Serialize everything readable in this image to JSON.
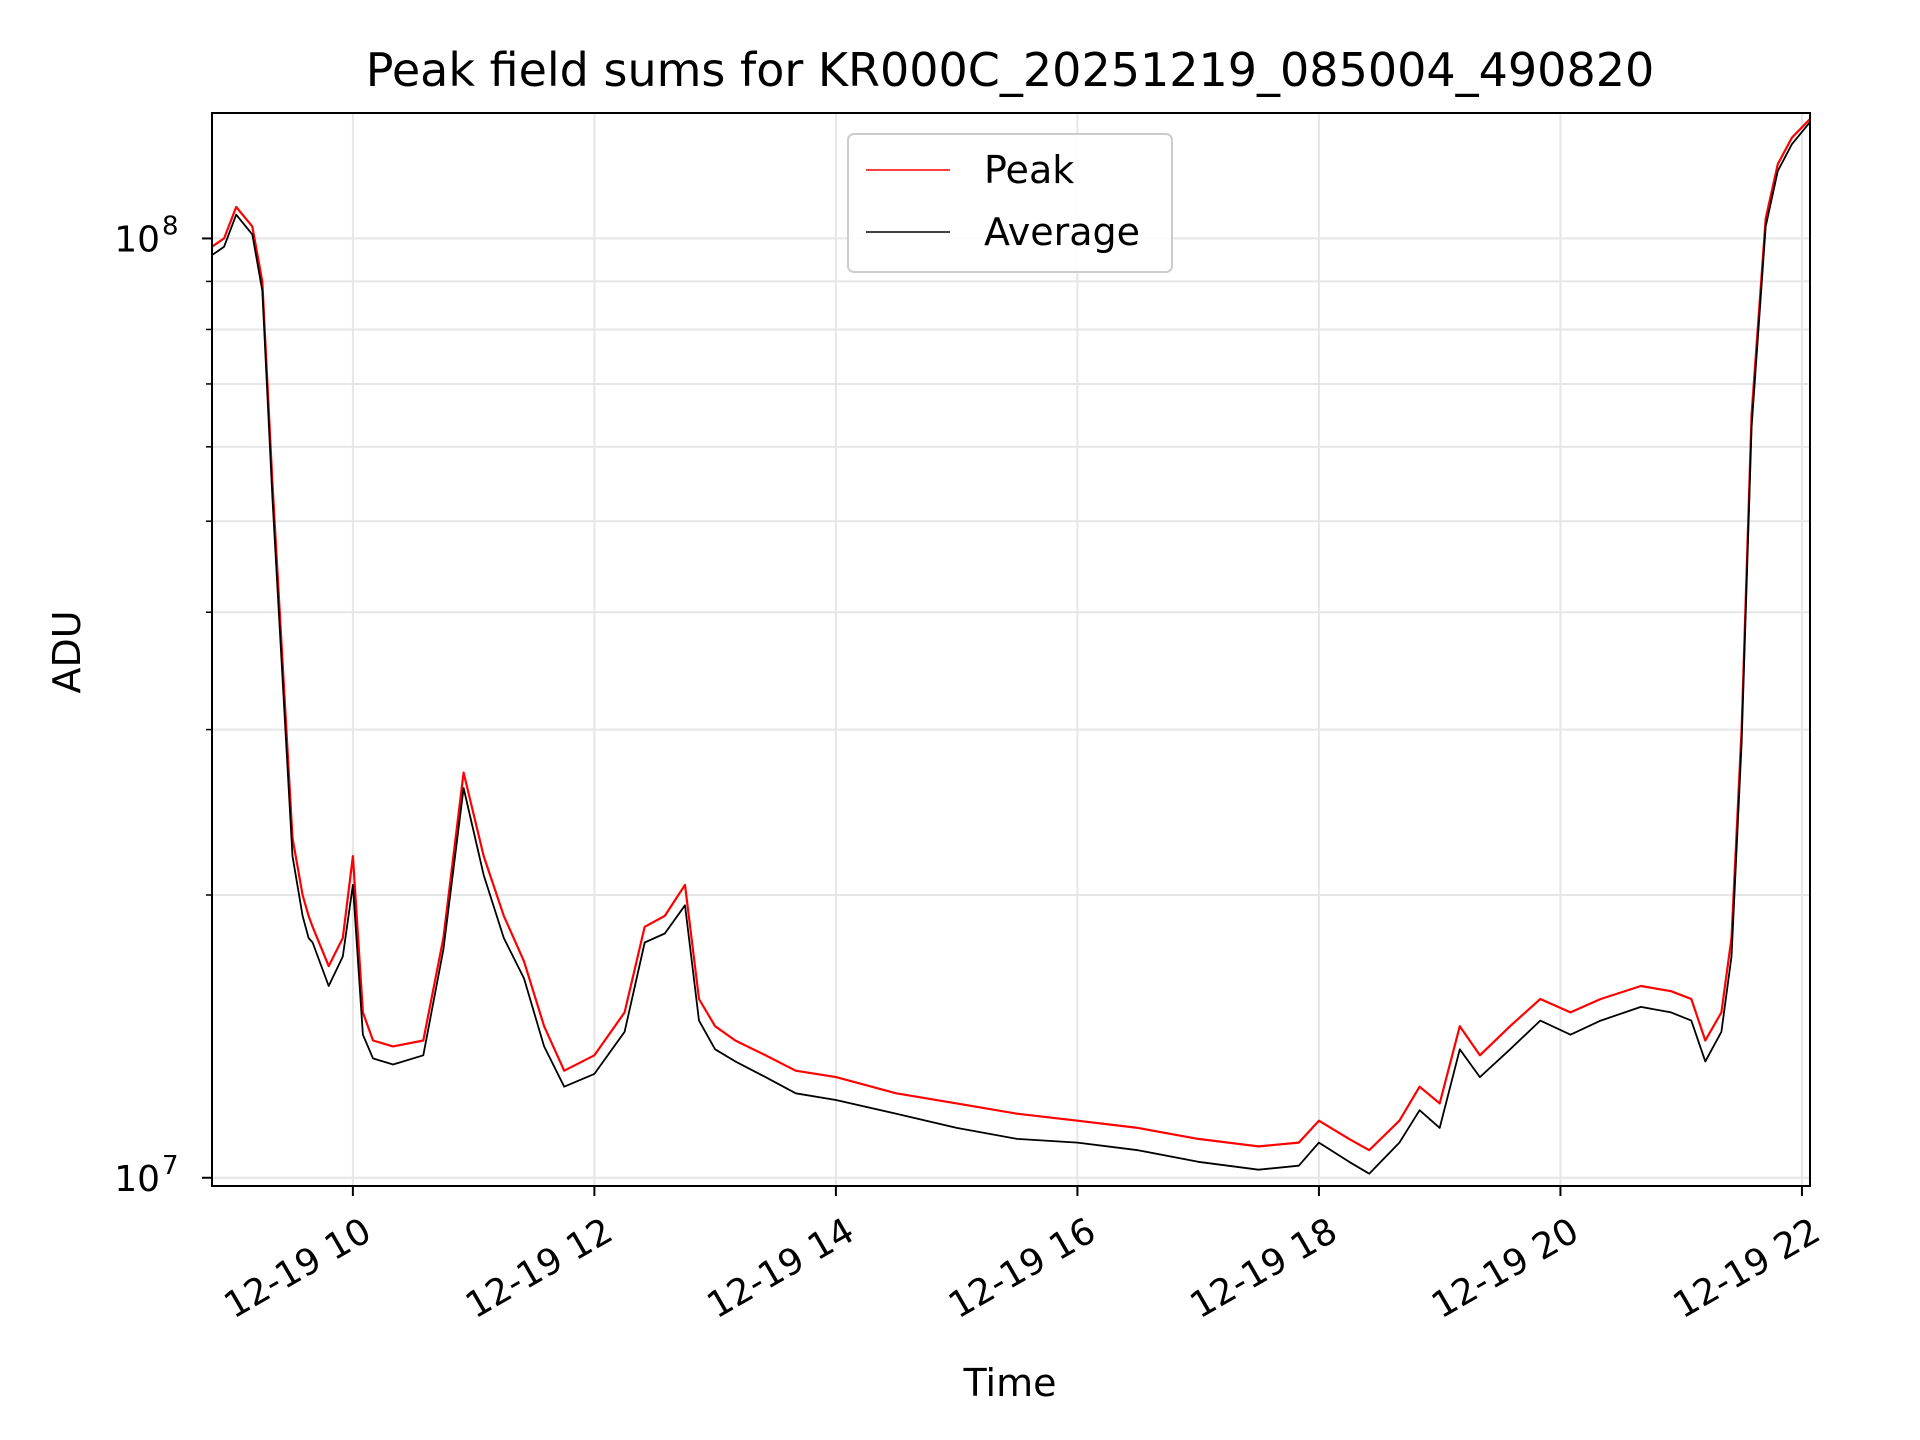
{
  "chart_data": {
    "type": "line",
    "title": "Peak field sums for KR000C_20251219_085004_490820",
    "xlabel": "Time",
    "ylabel": "ADU",
    "y_scale": "log",
    "ylim": [
      9800000,
      136000000
    ],
    "xlim": [
      "2025-12-19 08:50",
      "2025-12-19 22:04"
    ],
    "x_ticks": [
      {
        "label": "12-19 10",
        "time": "2025-12-19 10:00"
      },
      {
        "label": "12-19 12",
        "time": "2025-12-19 12:00"
      },
      {
        "label": "12-19 14",
        "time": "2025-12-19 14:00"
      },
      {
        "label": "12-19 16",
        "time": "2025-12-19 16:00"
      },
      {
        "label": "12-19 18",
        "time": "2025-12-19 18:00"
      },
      {
        "label": "12-19 20",
        "time": "2025-12-19 20:00"
      },
      {
        "label": "12-19 22",
        "time": "2025-12-19 22:00"
      }
    ],
    "y_ticks": [
      {
        "label": "10",
        "exp": "7",
        "value": 10000000
      },
      {
        "label": "10",
        "exp": "8",
        "value": 100000000
      }
    ],
    "grid": true,
    "legend_position": "top-center",
    "series": [
      {
        "name": "Peak",
        "color": "#ff0000",
        "x": [
          "2025-12-19 08:50",
          "2025-12-19 08:56",
          "2025-12-19 09:02",
          "2025-12-19 09:10",
          "2025-12-19 09:15",
          "2025-12-19 09:20",
          "2025-12-19 09:30",
          "2025-12-19 09:35",
          "2025-12-19 09:38",
          "2025-12-19 09:40",
          "2025-12-19 09:48",
          "2025-12-19 09:55",
          "2025-12-19 10:00",
          "2025-12-19 10:05",
          "2025-12-19 10:10",
          "2025-12-19 10:20",
          "2025-12-19 10:35",
          "2025-12-19 10:45",
          "2025-12-19 10:55",
          "2025-12-19 11:05",
          "2025-12-19 11:15",
          "2025-12-19 11:25",
          "2025-12-19 11:35",
          "2025-12-19 11:45",
          "2025-12-19 12:00",
          "2025-12-19 12:15",
          "2025-12-19 12:25",
          "2025-12-19 12:35",
          "2025-12-19 12:45",
          "2025-12-19 12:52",
          "2025-12-19 13:00",
          "2025-12-19 13:10",
          "2025-12-19 13:25",
          "2025-12-19 13:40",
          "2025-12-19 14:00",
          "2025-12-19 14:30",
          "2025-12-19 15:00",
          "2025-12-19 15:30",
          "2025-12-19 16:00",
          "2025-12-19 16:30",
          "2025-12-19 17:00",
          "2025-12-19 17:30",
          "2025-12-19 17:50",
          "2025-12-19 18:00",
          "2025-12-19 18:15",
          "2025-12-19 18:25",
          "2025-12-19 18:40",
          "2025-12-19 18:50",
          "2025-12-19 19:00",
          "2025-12-19 19:10",
          "2025-12-19 19:20",
          "2025-12-19 19:35",
          "2025-12-19 19:50",
          "2025-12-19 20:05",
          "2025-12-19 20:20",
          "2025-12-19 20:40",
          "2025-12-19 20:55",
          "2025-12-19 21:05",
          "2025-12-19 21:12",
          "2025-12-19 21:20",
          "2025-12-19 21:25",
          "2025-12-19 21:30",
          "2025-12-19 21:35",
          "2025-12-19 21:42",
          "2025-12-19 21:48",
          "2025-12-19 21:55",
          "2025-12-19 22:04"
        ],
        "y": [
          98000000,
          100000000,
          108000000,
          103000000,
          90000000,
          55000000,
          23000000,
          20000000,
          19000000,
          18500000,
          16800000,
          18000000,
          22000000,
          15000000,
          14000000,
          13800000,
          14000000,
          18000000,
          27000000,
          22000000,
          19000000,
          17000000,
          14500000,
          13000000,
          13500000,
          15000000,
          18500000,
          19000000,
          20500000,
          15500000,
          14500000,
          14000000,
          13500000,
          13000000,
          12800000,
          12300000,
          12000000,
          11700000,
          11500000,
          11300000,
          11000000,
          10800000,
          10900000,
          11500000,
          11000000,
          10700000,
          11500000,
          12500000,
          12000000,
          14500000,
          13500000,
          14500000,
          15500000,
          15000000,
          15500000,
          16000000,
          15800000,
          15500000,
          14000000,
          15000000,
          18000000,
          30000000,
          65000000,
          105000000,
          120000000,
          128000000,
          134000000
        ]
      },
      {
        "name": "Average",
        "color": "#000000",
        "x": [
          "2025-12-19 08:50",
          "2025-12-19 08:56",
          "2025-12-19 09:02",
          "2025-12-19 09:10",
          "2025-12-19 09:15",
          "2025-12-19 09:20",
          "2025-12-19 09:30",
          "2025-12-19 09:35",
          "2025-12-19 09:38",
          "2025-12-19 09:40",
          "2025-12-19 09:48",
          "2025-12-19 09:55",
          "2025-12-19 10:00",
          "2025-12-19 10:05",
          "2025-12-19 10:10",
          "2025-12-19 10:20",
          "2025-12-19 10:35",
          "2025-12-19 10:45",
          "2025-12-19 10:55",
          "2025-12-19 11:05",
          "2025-12-19 11:15",
          "2025-12-19 11:25",
          "2025-12-19 11:35",
          "2025-12-19 11:45",
          "2025-12-19 12:00",
          "2025-12-19 12:15",
          "2025-12-19 12:25",
          "2025-12-19 12:35",
          "2025-12-19 12:45",
          "2025-12-19 12:52",
          "2025-12-19 13:00",
          "2025-12-19 13:10",
          "2025-12-19 13:25",
          "2025-12-19 13:40",
          "2025-12-19 14:00",
          "2025-12-19 14:30",
          "2025-12-19 15:00",
          "2025-12-19 15:30",
          "2025-12-19 16:00",
          "2025-12-19 16:30",
          "2025-12-19 17:00",
          "2025-12-19 17:30",
          "2025-12-19 17:50",
          "2025-12-19 18:00",
          "2025-12-19 18:15",
          "2025-12-19 18:25",
          "2025-12-19 18:40",
          "2025-12-19 18:50",
          "2025-12-19 19:00",
          "2025-12-19 19:10",
          "2025-12-19 19:20",
          "2025-12-19 19:35",
          "2025-12-19 19:50",
          "2025-12-19 20:05",
          "2025-12-19 20:20",
          "2025-12-19 20:40",
          "2025-12-19 20:55",
          "2025-12-19 21:05",
          "2025-12-19 21:12",
          "2025-12-19 21:20",
          "2025-12-19 21:25",
          "2025-12-19 21:30",
          "2025-12-19 21:35",
          "2025-12-19 21:42",
          "2025-12-19 21:48",
          "2025-12-19 21:55",
          "2025-12-19 22:04"
        ],
        "y": [
          96000000,
          98000000,
          106000000,
          101000000,
          88000000,
          53000000,
          22000000,
          19000000,
          18000000,
          17800000,
          16000000,
          17200000,
          20500000,
          14200000,
          13400000,
          13200000,
          13500000,
          17500000,
          26000000,
          21000000,
          18000000,
          16300000,
          13800000,
          12500000,
          12900000,
          14300000,
          17800000,
          18200000,
          19500000,
          14700000,
          13700000,
          13300000,
          12800000,
          12300000,
          12100000,
          11700000,
          11300000,
          11000000,
          10900000,
          10700000,
          10400000,
          10200000,
          10300000,
          10900000,
          10400000,
          10100000,
          10900000,
          11800000,
          11300000,
          13700000,
          12800000,
          13700000,
          14700000,
          14200000,
          14700000,
          15200000,
          15000000,
          14700000,
          13300000,
          14300000,
          17200000,
          29000000,
          63000000,
          103000000,
          118000000,
          126000000,
          133000000
        ]
      }
    ]
  }
}
